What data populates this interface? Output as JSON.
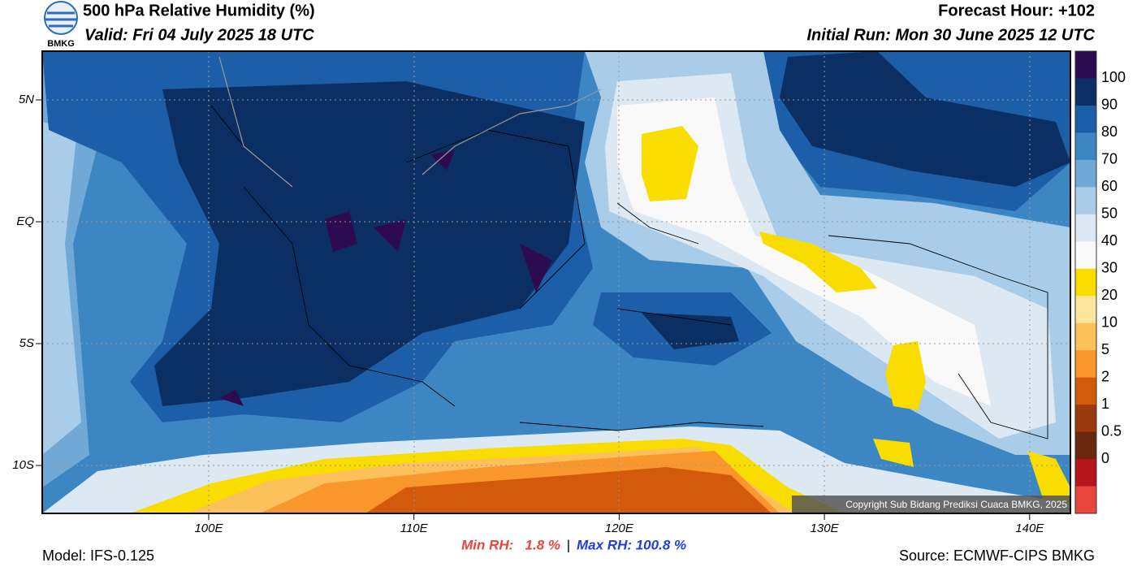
{
  "header": {
    "title": "500 hPa Relative Humidity (%)",
    "valid": "Valid: Fri 04 July 2025 18 UTC",
    "forecast_hour": "Forecast Hour: +102",
    "initial_run": "Initial Run: Mon 30 June 2025 12 UTC",
    "logo_text": "BMKG"
  },
  "map": {
    "lat_labels": [
      "5N",
      "EQ",
      "5S",
      "10S"
    ],
    "lon_labels": [
      "100E",
      "110E",
      "120E",
      "130E",
      "140E"
    ],
    "copyright": "Copyright Sub Bidang Prediksi Cuaca BMKG, 2025"
  },
  "colorbar": {
    "labels": [
      "100",
      "90",
      "80",
      "70",
      "60",
      "50",
      "40",
      "30",
      "20",
      "10",
      "5",
      "2",
      "1",
      "0.5",
      "0"
    ],
    "colors": [
      "#2e0a50",
      "#0c2f63",
      "#1c5ea8",
      "#3c86c3",
      "#70a9d6",
      "#a9cde8",
      "#dce9f3",
      "#f8f9f8",
      "#f9dc00",
      "#fde59c",
      "#fcc15b",
      "#f9962c",
      "#d35a0b",
      "#9b3a0c",
      "#6a2710",
      "#b5161b",
      "#e8463c"
    ]
  },
  "footer": {
    "min_rh": "Min RH:   1.8 %",
    "separator": "|",
    "max_rh": "Max RH: 100.8 %",
    "model": "Model: IFS-0.125",
    "source": "Source: ECMWF-CIPS BMKG"
  }
}
